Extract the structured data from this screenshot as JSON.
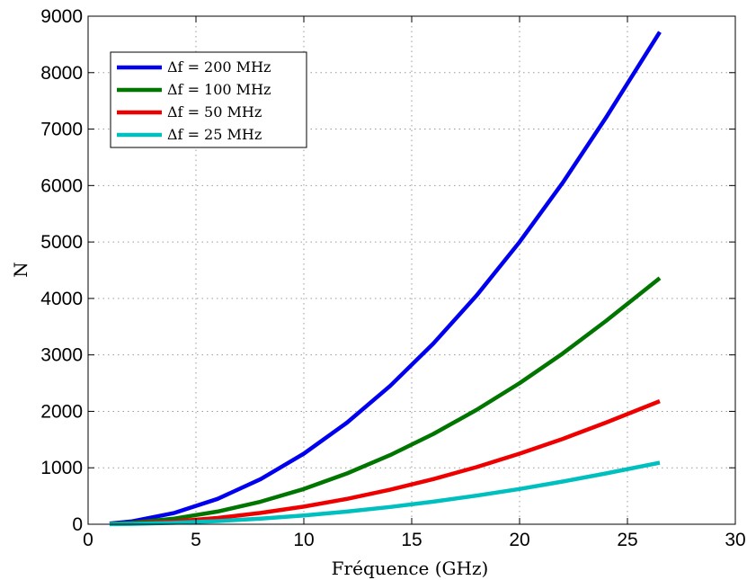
{
  "chart_data": {
    "type": "line",
    "xlabel": "Fréquence (GHz)",
    "ylabel": "N",
    "xlim": [
      0,
      30
    ],
    "ylim": [
      0,
      9000
    ],
    "xticks": [
      0,
      5,
      10,
      15,
      20,
      25,
      30
    ],
    "yticks": [
      0,
      1000,
      2000,
      3000,
      4000,
      5000,
      6000,
      7000,
      8000,
      9000
    ],
    "grid": true,
    "legend_position": "top-left",
    "x": [
      1,
      2,
      4,
      6,
      8,
      10,
      12,
      14,
      16,
      18,
      20,
      22,
      24,
      26.5
    ],
    "series": [
      {
        "name": "Δf = 200 MHz",
        "color": "#0000ee",
        "values": [
          12,
          50,
          200,
          450,
          800,
          1250,
          1800,
          2450,
          3200,
          4050,
          5000,
          6050,
          7200,
          8720
        ]
      },
      {
        "name": "Δf = 100 MHz",
        "color": "#007500",
        "values": [
          6,
          25,
          100,
          225,
          400,
          625,
          900,
          1225,
          1600,
          2025,
          2500,
          3025,
          3600,
          4360
        ]
      },
      {
        "name": "Δf = 50 MHz",
        "color": "#ee0000",
        "values": [
          3,
          12,
          50,
          112,
          200,
          312,
          450,
          612,
          800,
          1012,
          1250,
          1512,
          1800,
          2180
        ]
      },
      {
        "name": "Δf = 25 MHz",
        "color": "#00bfbf",
        "values": [
          2,
          6,
          25,
          56,
          100,
          156,
          225,
          306,
          400,
          506,
          625,
          756,
          900,
          1090
        ]
      }
    ]
  }
}
